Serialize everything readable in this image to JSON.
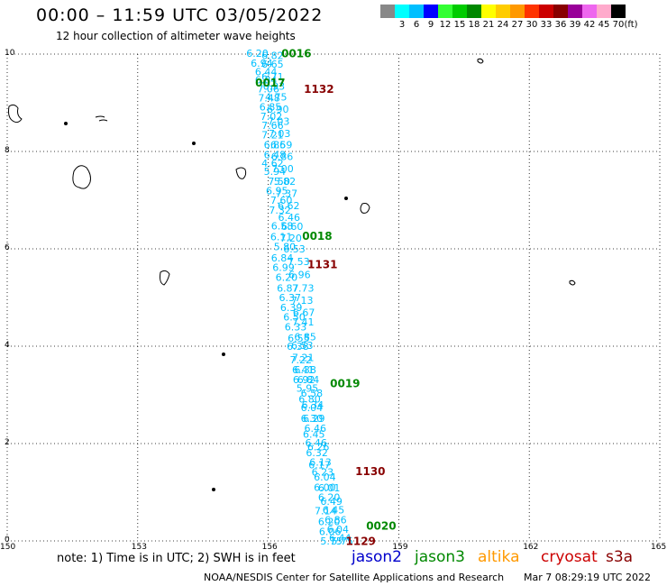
{
  "title": "00:00 – 11:59 UTC 03/05/2022",
  "subtitle": "12 hour collection of altimeter wave heights",
  "legend": {
    "unit": "(ft)",
    "labels": [
      "3",
      "6",
      "9",
      "12",
      "15",
      "18",
      "21",
      "24",
      "27",
      "30",
      "33",
      "36",
      "39",
      "42",
      "45",
      "70"
    ],
    "colors": [
      "#888888",
      "#00ffff",
      "#00bfff",
      "#0000ff",
      "#33ff33",
      "#00cc00",
      "#008800",
      "#ffff00",
      "#ffcc00",
      "#ff9900",
      "#ff3300",
      "#cc0000",
      "#880000",
      "#990099",
      "#ee66ee",
      "#ffaacc",
      "#000000"
    ]
  },
  "axes": {
    "x_ticks": [
      "150",
      "153",
      "156",
      "159",
      "162",
      "165"
    ],
    "x_values": [
      150,
      153,
      156,
      159,
      162,
      165
    ],
    "y_ticks": [
      "0",
      "2",
      "4",
      "6",
      "8",
      "10"
    ],
    "y_values": [
      0,
      2,
      4,
      6,
      8,
      10
    ],
    "xlim": [
      150,
      165
    ],
    "ylim": [
      0,
      10
    ],
    "grid": "dotted"
  },
  "note": "note: 1) Time is in UTC; 2) SWH is in feet",
  "satellites": [
    {
      "name": "jason2",
      "color": "#0000cc"
    },
    {
      "name": "jason3",
      "color": "#008800"
    },
    {
      "name": "altika",
      "color": "#ff9900"
    },
    {
      "name": "cryosat",
      "color": "#cc0000"
    },
    {
      "name": "s3a",
      "color": "#880000"
    }
  ],
  "credit": "NOAA/NESDIS Center for Satellite Applications and Research",
  "timestamp": "Mar  7 08:29:19 UTC 2022",
  "chart_data": {
    "type": "scatter",
    "track_color": "#00bfff",
    "points": [
      {
        "lon": 155.75,
        "lat": 10.0,
        "v": "6.20"
      },
      {
        "lon": 156.1,
        "lat": 9.95,
        "v": "6.82"
      },
      {
        "lon": 155.85,
        "lat": 9.8,
        "v": "6.94"
      },
      {
        "lon": 156.1,
        "lat": 9.78,
        "v": "6.65"
      },
      {
        "lon": 155.95,
        "lat": 9.62,
        "v": "6.44"
      },
      {
        "lon": 156.1,
        "lat": 9.52,
        "v": "6.71"
      },
      {
        "lon": 155.95,
        "lat": 9.45,
        "v": "6.84"
      },
      {
        "lon": 156.13,
        "lat": 9.32,
        "v": "6.93"
      },
      {
        "lon": 156.0,
        "lat": 9.27,
        "v": "7.06"
      },
      {
        "lon": 156.18,
        "lat": 9.1,
        "v": "4.75"
      },
      {
        "lon": 156.02,
        "lat": 9.08,
        "v": "7.48"
      },
      {
        "lon": 156.05,
        "lat": 8.9,
        "v": "6.85"
      },
      {
        "lon": 156.22,
        "lat": 8.85,
        "v": "6.90"
      },
      {
        "lon": 156.07,
        "lat": 8.7,
        "v": "7.02"
      },
      {
        "lon": 156.24,
        "lat": 8.6,
        "v": "7.03"
      },
      {
        "lon": 156.1,
        "lat": 8.52,
        "v": "7.66"
      },
      {
        "lon": 156.26,
        "lat": 8.35,
        "v": "7.03"
      },
      {
        "lon": 156.1,
        "lat": 8.32,
        "v": "7.21"
      },
      {
        "lon": 156.3,
        "lat": 8.12,
        "v": "6.59"
      },
      {
        "lon": 156.15,
        "lat": 8.12,
        "v": "6.86"
      },
      {
        "lon": 156.15,
        "lat": 7.92,
        "v": "6.48"
      },
      {
        "lon": 156.32,
        "lat": 7.88,
        "v": "6.86"
      },
      {
        "lon": 156.1,
        "lat": 7.74,
        "v": "4.62"
      },
      {
        "lon": 156.33,
        "lat": 7.63,
        "v": "7.00"
      },
      {
        "lon": 156.15,
        "lat": 7.57,
        "v": "5.94"
      },
      {
        "lon": 156.38,
        "lat": 7.37,
        "v": "5.82"
      },
      {
        "lon": 156.25,
        "lat": 7.37,
        "v": "7.50"
      },
      {
        "lon": 156.42,
        "lat": 7.12,
        "v": "7.37"
      },
      {
        "lon": 156.2,
        "lat": 7.18,
        "v": "6.95"
      },
      {
        "lon": 156.47,
        "lat": 6.87,
        "v": "6.62"
      },
      {
        "lon": 156.3,
        "lat": 6.98,
        "v": "7.60"
      },
      {
        "lon": 156.48,
        "lat": 6.63,
        "v": "6.46"
      },
      {
        "lon": 156.27,
        "lat": 6.78,
        "v": "7.32"
      },
      {
        "lon": 156.32,
        "lat": 6.45,
        "v": "6.58"
      },
      {
        "lon": 156.55,
        "lat": 6.44,
        "v": "6.60"
      },
      {
        "lon": 156.52,
        "lat": 6.2,
        "v": "7.20"
      },
      {
        "lon": 156.3,
        "lat": 6.23,
        "v": "6.11"
      },
      {
        "lon": 156.38,
        "lat": 6.03,
        "v": "5.80"
      },
      {
        "lon": 156.6,
        "lat": 5.98,
        "v": "6.53"
      },
      {
        "lon": 156.32,
        "lat": 5.8,
        "v": "6.84"
      },
      {
        "lon": 156.7,
        "lat": 5.72,
        "v": "7.53"
      },
      {
        "lon": 156.35,
        "lat": 5.6,
        "v": "6.99"
      },
      {
        "lon": 156.72,
        "lat": 5.45,
        "v": "6.96"
      },
      {
        "lon": 156.42,
        "lat": 5.4,
        "v": "6.20"
      },
      {
        "lon": 156.8,
        "lat": 5.18,
        "v": "7.73"
      },
      {
        "lon": 156.45,
        "lat": 5.18,
        "v": "6.87"
      },
      {
        "lon": 156.5,
        "lat": 4.98,
        "v": "6.37"
      },
      {
        "lon": 156.78,
        "lat": 4.93,
        "v": "7.13"
      },
      {
        "lon": 156.53,
        "lat": 4.78,
        "v": "6.39"
      },
      {
        "lon": 156.82,
        "lat": 4.68,
        "v": "6.67"
      },
      {
        "lon": 156.6,
        "lat": 4.58,
        "v": "6.50"
      },
      {
        "lon": 156.8,
        "lat": 4.48,
        "v": "7.41"
      },
      {
        "lon": 156.63,
        "lat": 4.38,
        "v": "6.33"
      },
      {
        "lon": 156.85,
        "lat": 4.18,
        "v": "6.85"
      },
      {
        "lon": 156.7,
        "lat": 4.15,
        "v": "6.55"
      },
      {
        "lon": 156.78,
        "lat": 4.0,
        "v": "6.53"
      },
      {
        "lon": 156.68,
        "lat": 3.98,
        "v": "6.38"
      },
      {
        "lon": 156.8,
        "lat": 3.75,
        "v": "7.21"
      },
      {
        "lon": 156.75,
        "lat": 3.7,
        "v": "7.22"
      },
      {
        "lon": 156.85,
        "lat": 3.5,
        "v": "6.38"
      },
      {
        "lon": 156.8,
        "lat": 3.5,
        "v": "6.41"
      },
      {
        "lon": 156.92,
        "lat": 3.3,
        "v": "6.84"
      },
      {
        "lon": 156.82,
        "lat": 3.3,
        "v": "6.92"
      },
      {
        "lon": 156.9,
        "lat": 3.12,
        "v": "5.95"
      },
      {
        "lon": 157.0,
        "lat": 3.02,
        "v": "6.58"
      },
      {
        "lon": 156.95,
        "lat": 2.9,
        "v": "6.80"
      },
      {
        "lon": 157.02,
        "lat": 2.78,
        "v": "6.34"
      },
      {
        "lon": 157.0,
        "lat": 2.72,
        "v": "6.04"
      },
      {
        "lon": 157.05,
        "lat": 2.5,
        "v": "6.29"
      },
      {
        "lon": 157.0,
        "lat": 2.5,
        "v": "6.30"
      },
      {
        "lon": 157.08,
        "lat": 2.3,
        "v": "6.46"
      },
      {
        "lon": 157.05,
        "lat": 2.18,
        "v": "6.45"
      },
      {
        "lon": 157.1,
        "lat": 2.0,
        "v": "6.46"
      },
      {
        "lon": 157.15,
        "lat": 1.92,
        "v": "6.26"
      },
      {
        "lon": 157.12,
        "lat": 1.8,
        "v": "6.32"
      },
      {
        "lon": 157.2,
        "lat": 1.6,
        "v": "6.13"
      },
      {
        "lon": 157.18,
        "lat": 1.55,
        "v": "6.17"
      },
      {
        "lon": 157.25,
        "lat": 1.4,
        "v": "6.23"
      },
      {
        "lon": 157.3,
        "lat": 1.3,
        "v": "6.04"
      },
      {
        "lon": 157.3,
        "lat": 1.08,
        "v": "6.00"
      },
      {
        "lon": 157.4,
        "lat": 1.07,
        "v": "6.01"
      },
      {
        "lon": 157.4,
        "lat": 0.88,
        "v": "6.20"
      },
      {
        "lon": 157.45,
        "lat": 0.8,
        "v": "6.49"
      },
      {
        "lon": 157.5,
        "lat": 0.62,
        "v": "6.45"
      },
      {
        "lon": 157.32,
        "lat": 0.6,
        "v": "7.14"
      },
      {
        "lon": 157.55,
        "lat": 0.42,
        "v": "6.86"
      },
      {
        "lon": 157.4,
        "lat": 0.38,
        "v": "6.20"
      },
      {
        "lon": 157.6,
        "lat": 0.22,
        "v": "6.04"
      },
      {
        "lon": 157.42,
        "lat": 0.18,
        "v": "6.06"
      },
      {
        "lon": 157.65,
        "lat": 0.05,
        "v": "6.44"
      },
      {
        "lon": 157.45,
        "lat": -0.02,
        "v": "5.75"
      },
      {
        "lon": 157.7,
        "lat": -0.02,
        "v": "5.75"
      }
    ],
    "pass_labels": [
      {
        "lon": 156.3,
        "lat": 10.0,
        "text": "0016",
        "color": "#008800"
      },
      {
        "lon": 155.7,
        "lat": 9.4,
        "text": "0017",
        "color": "#008800"
      },
      {
        "lon": 156.82,
        "lat": 9.27,
        "text": "1132",
        "color": "#880000"
      },
      {
        "lon": 156.78,
        "lat": 6.25,
        "text": "0018",
        "color": "#008800"
      },
      {
        "lon": 156.9,
        "lat": 5.67,
        "text": "1131",
        "color": "#880000"
      },
      {
        "lon": 157.42,
        "lat": 3.22,
        "text": "0019",
        "color": "#008800"
      },
      {
        "lon": 158.0,
        "lat": 1.42,
        "text": "1130",
        "color": "#880000"
      },
      {
        "lon": 158.25,
        "lat": 0.3,
        "text": "0020",
        "color": "#008800"
      },
      {
        "lon": 157.78,
        "lat": -0.02,
        "text": "1129",
        "color": "#880000"
      }
    ]
  }
}
